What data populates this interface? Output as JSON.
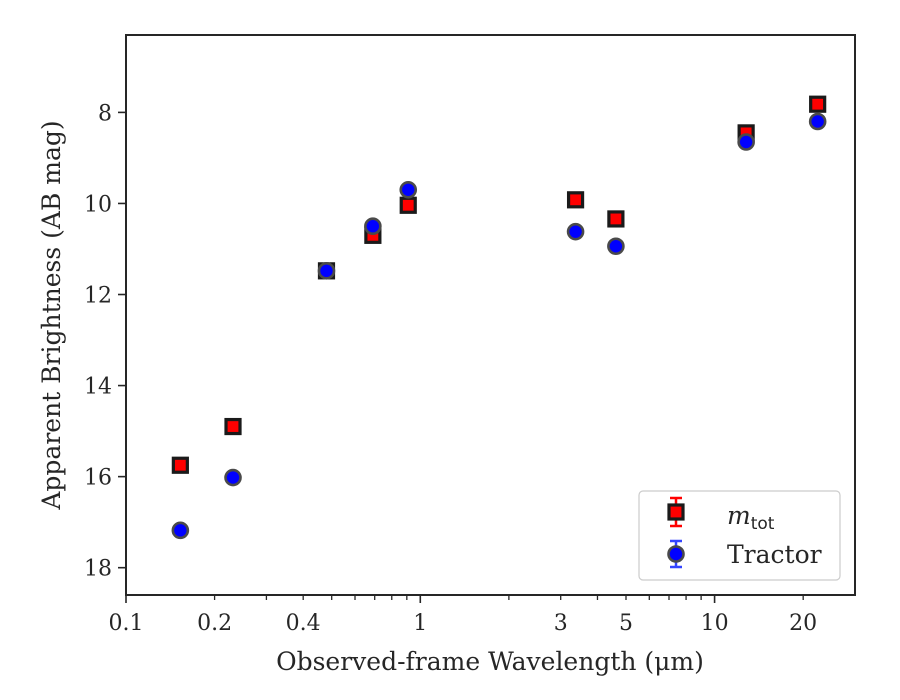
{
  "chart_data": {
    "type": "scatter",
    "xlabel": "Observed-frame Wavelength (μm)",
    "ylabel": "Apparent Brightness (AB mag)",
    "x_scale": "log",
    "xlim": [
      0.1,
      30
    ],
    "ylim": [
      18.6,
      6.3
    ],
    "y_inverted": true,
    "x_ticks": [
      0.1,
      0.2,
      0.4,
      1,
      3,
      5,
      10,
      20
    ],
    "x_tick_labels": [
      "0.1",
      "0.2",
      "0.4",
      "1",
      "3",
      "5",
      "10",
      "20"
    ],
    "y_ticks": [
      8,
      10,
      12,
      14,
      16,
      18
    ],
    "y_tick_labels": [
      "8",
      "10",
      "12",
      "14",
      "16",
      "18"
    ],
    "grid": false,
    "legend_position": "lower right",
    "series": [
      {
        "name_main": "m",
        "name_sub": "tot",
        "marker": "square",
        "color": "#ff0000",
        "edgecolor": "#1a1a1a",
        "x": [
          0.153,
          0.231,
          0.48,
          0.69,
          0.91,
          3.37,
          4.62,
          12.8,
          22.4
        ],
        "y": [
          15.75,
          14.9,
          11.48,
          10.7,
          10.04,
          9.92,
          10.34,
          8.45,
          7.82
        ]
      },
      {
        "name": "Tractor",
        "marker": "circle",
        "color": "#0000ff",
        "edgecolor": "#4a4a4a",
        "x": [
          0.153,
          0.231,
          0.48,
          0.69,
          0.91,
          3.37,
          4.62,
          12.8,
          22.4
        ],
        "y": [
          17.18,
          16.02,
          11.48,
          10.5,
          9.7,
          10.62,
          10.94,
          8.65,
          8.2
        ]
      }
    ]
  }
}
